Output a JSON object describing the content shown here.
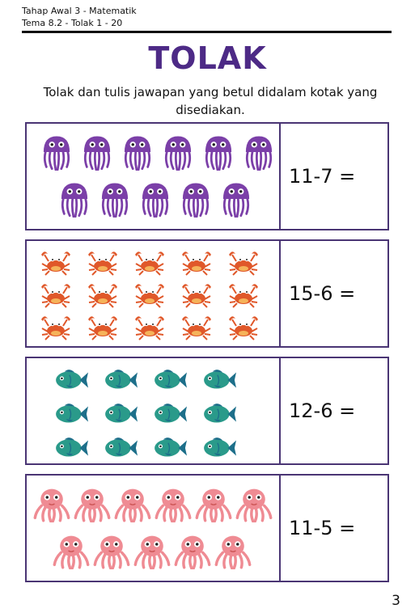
{
  "header": {
    "line1": "Tahap Awal 3 - Matematik",
    "line2": "Tema 8.2 - Tolak 1 - 20"
  },
  "title": "TOLAK",
  "instruction": "Tolak dan tulis jawapan yang betul didalam kotak yang disediakan.",
  "questions": [
    {
      "equation": "11-7 =",
      "icon": "jellyfish-icon",
      "color": "#7b3fa8",
      "rows": [
        6,
        5
      ]
    },
    {
      "equation": "15-6 =",
      "icon": "crab-icon",
      "color": "#e0582a",
      "rows": [
        5,
        5,
        5
      ]
    },
    {
      "equation": "12-6 =",
      "icon": "fish-icon",
      "color": "#2a9a8a",
      "rows": [
        4,
        4,
        4
      ]
    },
    {
      "equation": "11-5 =",
      "icon": "octopus-icon",
      "color": "#ef8b93",
      "rows": [
        6,
        5
      ]
    }
  ],
  "page_number": "3"
}
